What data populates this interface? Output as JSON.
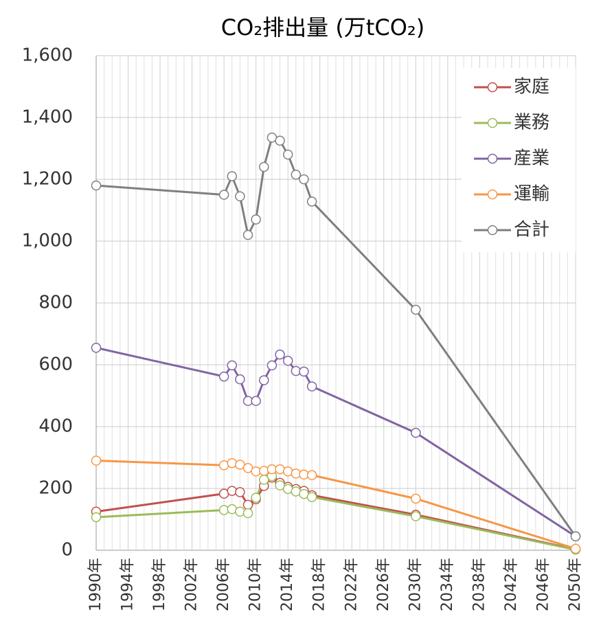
{
  "chart_data": {
    "type": "line",
    "title": "CO₂排出量 (万tCO₂)",
    "x": [
      1990,
      2006,
      2007,
      2008,
      2009,
      2010,
      2011,
      2012,
      2013,
      2014,
      2015,
      2016,
      2017,
      2030,
      2050
    ],
    "series": [
      {
        "name": "家庭",
        "color": "#c0504d",
        "values": [
          125,
          183,
          192,
          188,
          147,
          165,
          208,
          235,
          218,
          205,
          198,
          192,
          178,
          115,
          3
        ]
      },
      {
        "name": "業務",
        "color": "#9bbb59",
        "values": [
          107,
          130,
          133,
          125,
          120,
          170,
          228,
          240,
          210,
          198,
          190,
          182,
          172,
          110,
          2
        ]
      },
      {
        "name": "産業",
        "color": "#8064a2",
        "values": [
          655,
          562,
          598,
          553,
          483,
          483,
          550,
          598,
          633,
          613,
          580,
          578,
          530,
          380,
          45
        ]
      },
      {
        "name": "運輸",
        "color": "#f79646",
        "values": [
          290,
          275,
          282,
          277,
          266,
          255,
          257,
          262,
          262,
          255,
          248,
          245,
          243,
          167,
          5
        ]
      },
      {
        "name": "合計",
        "color": "#7f7f7f",
        "values": [
          1180,
          1150,
          1210,
          1145,
          1020,
          1070,
          1240,
          1335,
          1325,
          1280,
          1215,
          1200,
          1128,
          778,
          45
        ]
      }
    ],
    "xlim": [
      1990,
      2050
    ],
    "xticks": [
      {
        "value": 1990,
        "label": "1990年"
      },
      {
        "value": 1994,
        "label": "1994年"
      },
      {
        "value": 1998,
        "label": "1998年"
      },
      {
        "value": 2002,
        "label": "2002年"
      },
      {
        "value": 2006,
        "label": "2006年"
      },
      {
        "value": 2010,
        "label": "2010年"
      },
      {
        "value": 2014,
        "label": "2014年"
      },
      {
        "value": 2018,
        "label": "2018年"
      },
      {
        "value": 2022,
        "label": "2022年"
      },
      {
        "value": 2026,
        "label": "2026年"
      },
      {
        "value": 2030,
        "label": "2030年"
      },
      {
        "value": 2034,
        "label": "2034年"
      },
      {
        "value": 2038,
        "label": "2038年"
      },
      {
        "value": 2042,
        "label": "2042年"
      },
      {
        "value": 2046,
        "label": "2046年"
      },
      {
        "value": 2050,
        "label": "2050年"
      }
    ],
    "ylim": [
      0,
      1600
    ],
    "yticks": [
      0,
      200,
      400,
      600,
      800,
      {
        "value": 1000,
        "label": "1,000"
      },
      {
        "value": 1200,
        "label": "1,200"
      },
      {
        "value": 1400,
        "label": "1,400"
      },
      {
        "value": 1600,
        "label": "1,600"
      }
    ],
    "grid": true,
    "legend": "top-right"
  }
}
